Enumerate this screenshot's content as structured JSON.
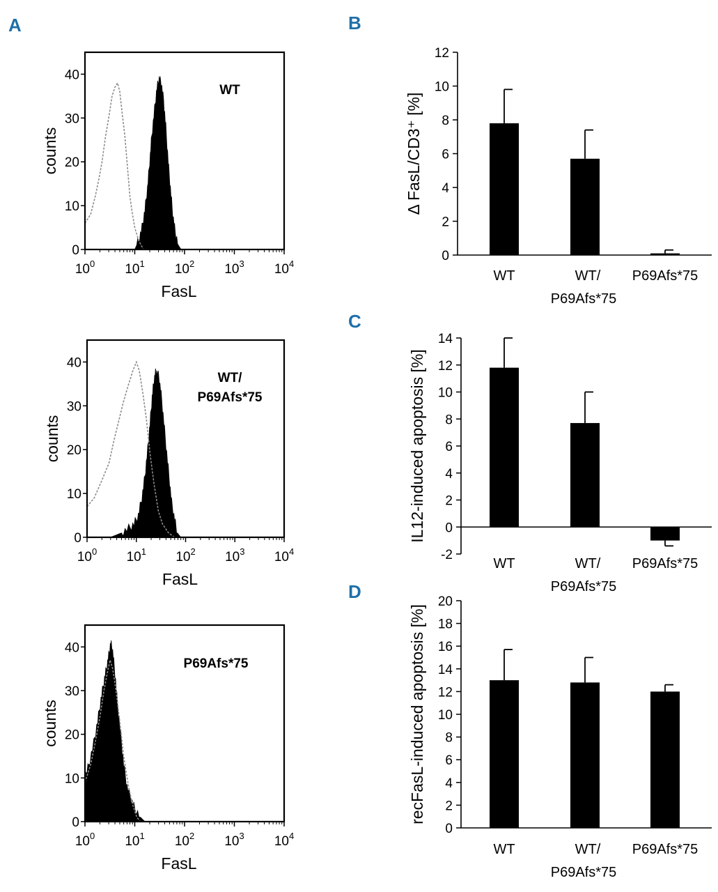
{
  "panels": {
    "A": "A",
    "B": "B",
    "C": "C",
    "D": "D"
  },
  "chart_data": [
    {
      "id": "A1",
      "type": "histogram",
      "panel": "A",
      "annotation": [
        "WT"
      ],
      "xlabel": "FasL",
      "ylabel": "counts",
      "xscale": "log",
      "xlim": [
        1,
        10000
      ],
      "ylim": [
        0,
        45
      ],
      "xticks": [
        1,
        10,
        100,
        1000,
        10000
      ],
      "xtick_labels": [
        [
          "10",
          "0"
        ],
        [
          "10",
          "1"
        ],
        [
          "10",
          "2"
        ],
        [
          "10",
          "3"
        ],
        [
          "10",
          "4"
        ]
      ],
      "yticks": [
        0,
        10,
        20,
        30,
        40
      ],
      "control_curve": [
        [
          1,
          6
        ],
        [
          1.3,
          8
        ],
        [
          1.6,
          12
        ],
        [
          1.9,
          16
        ],
        [
          2.2,
          20
        ],
        [
          2.6,
          26
        ],
        [
          3.0,
          30
        ],
        [
          3.5,
          35
        ],
        [
          4.0,
          37
        ],
        [
          4.5,
          38
        ],
        [
          5.0,
          36
        ],
        [
          5.6,
          31
        ],
        [
          6.3,
          26
        ],
        [
          7,
          20
        ],
        [
          8,
          12
        ],
        [
          9,
          8
        ],
        [
          10,
          5
        ],
        [
          12,
          2
        ],
        [
          15,
          0
        ]
      ],
      "filled_curve": [
        [
          10,
          0
        ],
        [
          12,
          2
        ],
        [
          14,
          5
        ],
        [
          16,
          9
        ],
        [
          18,
          14
        ],
        [
          20,
          20
        ],
        [
          22,
          26
        ],
        [
          25,
          32
        ],
        [
          28,
          37
        ],
        [
          31,
          39
        ],
        [
          34,
          38
        ],
        [
          38,
          34
        ],
        [
          42,
          28
        ],
        [
          47,
          20
        ],
        [
          52,
          14
        ],
        [
          58,
          8
        ],
        [
          65,
          4
        ],
        [
          75,
          1
        ],
        [
          85,
          0
        ]
      ]
    },
    {
      "id": "A2",
      "type": "histogram",
      "panel": "A",
      "annotation": [
        "WT/",
        "P69Afs*75"
      ],
      "xlabel": "FasL",
      "ylabel": "counts",
      "xscale": "log",
      "xlim": [
        1,
        10000
      ],
      "ylim": [
        0,
        45
      ],
      "xticks": [
        1,
        10,
        100,
        1000,
        10000
      ],
      "xtick_labels": [
        [
          "10",
          "0"
        ],
        [
          "10",
          "1"
        ],
        [
          "10",
          "2"
        ],
        [
          "10",
          "3"
        ],
        [
          "10",
          "4"
        ]
      ],
      "yticks": [
        0,
        10,
        20,
        30,
        40
      ],
      "control_curve": [
        [
          1,
          7
        ],
        [
          1.4,
          9
        ],
        [
          2,
          13
        ],
        [
          2.8,
          17
        ],
        [
          3.5,
          22
        ],
        [
          4.5,
          27
        ],
        [
          5.5,
          31
        ],
        [
          7,
          35
        ],
        [
          8.5,
          38
        ],
        [
          10,
          40
        ],
        [
          11.5,
          38
        ],
        [
          13.5,
          33
        ],
        [
          16,
          27
        ],
        [
          19,
          19
        ],
        [
          23,
          12
        ],
        [
          28,
          6
        ],
        [
          34,
          3
        ],
        [
          45,
          1
        ],
        [
          60,
          0
        ]
      ],
      "filled_curve": [
        [
          3,
          0
        ],
        [
          5,
          1
        ],
        [
          7,
          2
        ],
        [
          9,
          3
        ],
        [
          11,
          5
        ],
        [
          13,
          9
        ],
        [
          15,
          14
        ],
        [
          17,
          20
        ],
        [
          19,
          26
        ],
        [
          21,
          32
        ],
        [
          23,
          36
        ],
        [
          25,
          38
        ],
        [
          28,
          37
        ],
        [
          31,
          34
        ],
        [
          35,
          28
        ],
        [
          40,
          21
        ],
        [
          46,
          14
        ],
        [
          52,
          8
        ],
        [
          60,
          4
        ],
        [
          68,
          1
        ],
        [
          80,
          0
        ]
      ]
    },
    {
      "id": "A3",
      "type": "histogram",
      "panel": "A",
      "annotation": [
        "P69Afs*75"
      ],
      "xlabel": "FasL",
      "ylabel": "counts",
      "xscale": "log",
      "xlim": [
        1,
        10000
      ],
      "ylim": [
        0,
        45
      ],
      "xticks": [
        1,
        10,
        100,
        1000,
        10000
      ],
      "xtick_labels": [
        [
          "10",
          "0"
        ],
        [
          "10",
          "1"
        ],
        [
          "10",
          "2"
        ],
        [
          "10",
          "3"
        ],
        [
          "10",
          "4"
        ]
      ],
      "yticks": [
        0,
        10,
        20,
        30,
        40
      ],
      "control_curve": [
        [
          1,
          9
        ],
        [
          1.3,
          13
        ],
        [
          1.6,
          18
        ],
        [
          2,
          24
        ],
        [
          2.4,
          30
        ],
        [
          2.8,
          34
        ],
        [
          3.2,
          37
        ],
        [
          3.6,
          35
        ],
        [
          4.2,
          30
        ],
        [
          5,
          23
        ],
        [
          6,
          15
        ],
        [
          7.5,
          8
        ],
        [
          9,
          4
        ],
        [
          11,
          1
        ],
        [
          13,
          0
        ]
      ],
      "filled_curve": [
        [
          1,
          10
        ],
        [
          1.2,
          13
        ],
        [
          1.5,
          18
        ],
        [
          1.8,
          23
        ],
        [
          2.1,
          28
        ],
        [
          2.4,
          32
        ],
        [
          2.7,
          35
        ],
        [
          3.0,
          38
        ],
        [
          3.3,
          41
        ],
        [
          3.6,
          39
        ],
        [
          4.0,
          34
        ],
        [
          4.5,
          27
        ],
        [
          5.2,
          20
        ],
        [
          6,
          13
        ],
        [
          7,
          8
        ],
        [
          8.5,
          5
        ],
        [
          10,
          3
        ],
        [
          13,
          1
        ],
        [
          16,
          0
        ],
        [
          25,
          0
        ]
      ]
    },
    {
      "id": "B",
      "type": "bar",
      "panel": "B",
      "categories": [
        [
          "WT"
        ],
        [
          "WT/",
          "P69Afs*75"
        ],
        [
          "P69Afs*75"
        ]
      ],
      "values": [
        7.8,
        5.7,
        0.1
      ],
      "errors": [
        2.0,
        1.7,
        0.2
      ],
      "ylabel": "Δ FasL/CD3⁺ [%]",
      "ylim": [
        0,
        12
      ],
      "yticks": [
        0,
        2,
        4,
        6,
        8,
        10,
        12
      ]
    },
    {
      "id": "C",
      "type": "bar",
      "panel": "C",
      "categories": [
        [
          "WT"
        ],
        [
          "WT/",
          "P69Afs*75"
        ],
        [
          "P69Afs*75"
        ]
      ],
      "values": [
        11.8,
        7.7,
        -1.0
      ],
      "errors": [
        2.2,
        2.3,
        0.4
      ],
      "ylabel": "IL12-induced apoptosis [%]",
      "ylim": [
        -2,
        14
      ],
      "yticks": [
        -2,
        0,
        2,
        4,
        6,
        8,
        10,
        12,
        14
      ]
    },
    {
      "id": "D",
      "type": "bar",
      "panel": "D",
      "categories": [
        [
          "WT"
        ],
        [
          "WT/",
          "P69Afs*75"
        ],
        [
          "P69Afs*75"
        ]
      ],
      "values": [
        13.0,
        12.8,
        12.0
      ],
      "errors": [
        2.7,
        2.2,
        0.6
      ],
      "ylabel": "recFasL-induced apoptosis [%]",
      "ylim": [
        0,
        20
      ],
      "yticks": [
        0,
        2,
        4,
        6,
        8,
        10,
        12,
        14,
        16,
        18,
        20
      ]
    }
  ]
}
